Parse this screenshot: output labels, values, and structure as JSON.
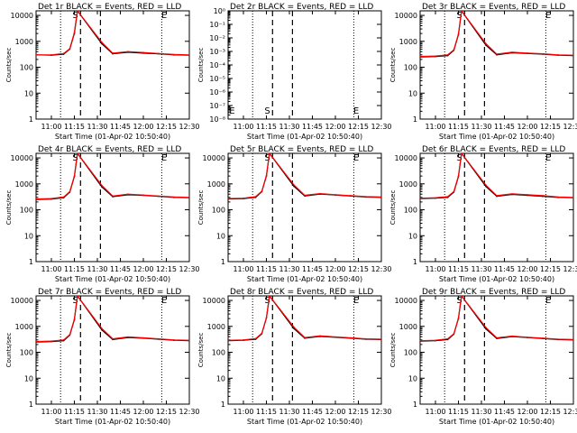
{
  "figure": {
    "xlabel": "Start Time (01-Apr-02 10:50:40)",
    "ylabel": "Counts/sec"
  },
  "chart_data": [
    {
      "type": "line",
      "title": "Det 1r BLACK = Events, RED = LLD",
      "xlabel": "Start Time (01-Apr-02 10:50:40)",
      "ylabel": "Counts/sec",
      "xticks": [
        "11:00",
        "11:15",
        "11:30",
        "11:45",
        "12:00",
        "12:15",
        "12:30"
      ],
      "yticks": [
        "1",
        "10",
        "100",
        "1000",
        "10000"
      ],
      "ylog": true,
      "ylim": [
        1,
        15000
      ],
      "xlim": [
        "10:50",
        "12:30"
      ],
      "vlines_dashed": [
        "11:19",
        "11:32"
      ],
      "vlines_dotted": [
        "11:06",
        "12:12"
      ],
      "markers": [
        {
          "label": "S",
          "x": "11:15"
        },
        {
          "label": "E",
          "x": "12:13"
        }
      ],
      "has_data": true,
      "series": [
        {
          "name": "Events",
          "color": "#000000",
          "x": [
            "10:50",
            "11:00",
            "11:08",
            "11:12",
            "11:15",
            "11:17",
            "11:33",
            "11:40",
            "11:50",
            "12:00",
            "12:10",
            "12:20",
            "12:30"
          ],
          "y": [
            300,
            290,
            320,
            500,
            2000,
            15000,
            800,
            330,
            380,
            350,
            330,
            300,
            290
          ]
        },
        {
          "name": "LLD",
          "color": "#ff0000",
          "x": [
            "10:50",
            "11:00",
            "11:08",
            "11:12",
            "11:15",
            "11:17",
            "11:33",
            "11:40",
            "11:50",
            "12:00",
            "12:10",
            "12:20",
            "12:30"
          ],
          "y": [
            300,
            300,
            340,
            520,
            2200,
            15000,
            900,
            350,
            400,
            370,
            340,
            310,
            300
          ]
        }
      ]
    },
    {
      "type": "line",
      "title": "Det 2r BLACK = Events, RED = LLD",
      "xlabel": "Start Time (01-Apr-02 10:50:40)",
      "ylabel": "Counts/sec",
      "xticks": [
        "11:00",
        "11:15",
        "11:30",
        "11:45",
        "12:00",
        "12:15",
        "12:30"
      ],
      "yticks": [
        "10⁻⁸",
        "10⁻⁷",
        "10⁻⁶",
        "10⁻⁵",
        "10⁻⁴",
        "10⁻³",
        "10⁻²",
        "10⁻¹",
        "10⁰"
      ],
      "ylog": true,
      "ylim": [
        1e-08,
        1
      ],
      "xlim": [
        "10:50",
        "12:30"
      ],
      "vlines_dashed": [
        "11:19",
        "11:32"
      ],
      "vlines_dotted": [
        "11:06",
        "12:12"
      ],
      "markers": [
        {
          "label": "E",
          "x": "10:52"
        },
        {
          "label": "S",
          "x": "11:15"
        },
        {
          "label": "E",
          "x": "12:13"
        }
      ],
      "has_data": false,
      "series": []
    },
    {
      "type": "line",
      "title": "Det 3r BLACK = Events, RED = LLD",
      "xlabel": "Start Time (01-Apr-02 10:50:40)",
      "ylabel": "Counts/sec",
      "xticks": [
        "11:00",
        "11:15",
        "11:30",
        "11:45",
        "12:00",
        "12:15",
        "12:30"
      ],
      "yticks": [
        "1",
        "10",
        "100",
        "1000",
        "10000"
      ],
      "ylog": true,
      "ylim": [
        1,
        15000
      ],
      "xlim": [
        "10:50",
        "12:30"
      ],
      "vlines_dashed": [
        "11:19",
        "11:32"
      ],
      "vlines_dotted": [
        "11:06",
        "12:12"
      ],
      "markers": [
        {
          "label": "S",
          "x": "11:15"
        },
        {
          "label": "E",
          "x": "12:13"
        }
      ],
      "has_data": true,
      "series": [
        {
          "name": "Events",
          "color": "#000000",
          "x": [
            "10:50",
            "11:00",
            "11:08",
            "11:12",
            "11:15",
            "11:17",
            "11:33",
            "11:40",
            "11:50",
            "12:00",
            "12:10",
            "12:20",
            "12:30"
          ],
          "y": [
            250,
            260,
            280,
            450,
            1800,
            15000,
            700,
            300,
            360,
            340,
            320,
            290,
            280
          ]
        },
        {
          "name": "LLD",
          "color": "#ff0000",
          "x": [
            "10:50",
            "11:00",
            "11:08",
            "11:12",
            "11:15",
            "11:17",
            "11:33",
            "11:40",
            "11:50",
            "12:00",
            "12:10",
            "12:20",
            "12:30"
          ],
          "y": [
            260,
            270,
            300,
            470,
            1900,
            15000,
            800,
            320,
            380,
            350,
            330,
            300,
            290
          ]
        }
      ]
    },
    {
      "type": "line",
      "title": "Det 4r BLACK = Events, RED = LLD",
      "xlabel": "Start Time (01-Apr-02 10:50:40)",
      "ylabel": "Counts/sec",
      "xticks": [
        "11:00",
        "11:15",
        "11:30",
        "11:45",
        "12:00",
        "12:15",
        "12:30"
      ],
      "yticks": [
        "1",
        "10",
        "100",
        "1000",
        "10000"
      ],
      "ylog": true,
      "ylim": [
        1,
        15000
      ],
      "xlim": [
        "10:50",
        "12:30"
      ],
      "vlines_dashed": [
        "11:19",
        "11:32"
      ],
      "vlines_dotted": [
        "11:06",
        "12:12"
      ],
      "markers": [
        {
          "label": "S",
          "x": "11:15"
        },
        {
          "label": "E",
          "x": "12:13"
        }
      ],
      "has_data": true,
      "series": [
        {
          "name": "Events",
          "color": "#000000",
          "x": [
            "10:50",
            "11:00",
            "11:08",
            "11:12",
            "11:15",
            "11:17",
            "11:33",
            "11:40",
            "11:50",
            "12:00",
            "12:10",
            "12:20",
            "12:30"
          ],
          "y": [
            250,
            260,
            290,
            480,
            1900,
            15000,
            750,
            320,
            380,
            360,
            330,
            300,
            290
          ]
        },
        {
          "name": "LLD",
          "color": "#ff0000",
          "x": [
            "10:50",
            "11:00",
            "11:08",
            "11:12",
            "11:15",
            "11:17",
            "11:33",
            "11:40",
            "11:50",
            "12:00",
            "12:10",
            "12:20",
            "12:30"
          ],
          "y": [
            260,
            270,
            310,
            500,
            2000,
            15000,
            850,
            340,
            400,
            370,
            340,
            310,
            300
          ]
        }
      ]
    },
    {
      "type": "line",
      "title": "Det 5r BLACK = Events, RED = LLD",
      "xlabel": "Start Time (01-Apr-02 10:50:40)",
      "ylabel": "Counts/sec",
      "xticks": [
        "11:00",
        "11:15",
        "11:30",
        "11:45",
        "12:00",
        "12:15",
        "12:30"
      ],
      "yticks": [
        "1",
        "10",
        "100",
        "1000",
        "10000"
      ],
      "ylog": true,
      "ylim": [
        1,
        15000
      ],
      "xlim": [
        "10:50",
        "12:30"
      ],
      "vlines_dashed": [
        "11:19",
        "11:32"
      ],
      "vlines_dotted": [
        "11:06",
        "12:12"
      ],
      "markers": [
        {
          "label": "S",
          "x": "11:15"
        },
        {
          "label": "E",
          "x": "12:13"
        }
      ],
      "has_data": true,
      "series": [
        {
          "name": "Events",
          "color": "#000000",
          "x": [
            "10:50",
            "11:00",
            "11:08",
            "11:12",
            "11:15",
            "11:17",
            "11:33",
            "11:40",
            "11:50",
            "12:00",
            "12:10",
            "12:20",
            "12:30"
          ],
          "y": [
            260,
            270,
            300,
            500,
            2000,
            15000,
            800,
            340,
            400,
            370,
            340,
            310,
            300
          ]
        },
        {
          "name": "LLD",
          "color": "#ff0000",
          "x": [
            "10:50",
            "11:00",
            "11:08",
            "11:12",
            "11:15",
            "11:17",
            "11:33",
            "11:40",
            "11:50",
            "12:00",
            "12:10",
            "12:20",
            "12:30"
          ],
          "y": [
            270,
            280,
            320,
            520,
            2100,
            15000,
            900,
            360,
            420,
            380,
            350,
            320,
            310
          ]
        }
      ]
    },
    {
      "type": "line",
      "title": "Det 6r BLACK = Events, RED = LLD",
      "xlabel": "Start Time (01-Apr-02 10:50:40)",
      "ylabel": "Counts/sec",
      "xticks": [
        "11:00",
        "11:15",
        "11:30",
        "11:45",
        "12:00",
        "12:15",
        "12:30"
      ],
      "yticks": [
        "1",
        "10",
        "100",
        "1000",
        "10000"
      ],
      "ylog": true,
      "ylim": [
        1,
        15000
      ],
      "xlim": [
        "10:50",
        "12:30"
      ],
      "vlines_dashed": [
        "11:19",
        "11:32"
      ],
      "vlines_dotted": [
        "11:06",
        "12:12"
      ],
      "markers": [
        {
          "label": "S",
          "x": "11:15"
        },
        {
          "label": "E",
          "x": "12:13"
        }
      ],
      "has_data": true,
      "series": [
        {
          "name": "Events",
          "color": "#000000",
          "x": [
            "10:50",
            "11:00",
            "11:08",
            "11:12",
            "11:15",
            "11:17",
            "11:33",
            "11:40",
            "11:50",
            "12:00",
            "12:10",
            "12:20",
            "12:30"
          ],
          "y": [
            270,
            280,
            300,
            480,
            1900,
            15000,
            780,
            330,
            390,
            360,
            330,
            300,
            290
          ]
        },
        {
          "name": "LLD",
          "color": "#ff0000",
          "x": [
            "10:50",
            "11:00",
            "11:08",
            "11:12",
            "11:15",
            "11:17",
            "11:33",
            "11:40",
            "11:50",
            "12:00",
            "12:10",
            "12:20",
            "12:30"
          ],
          "y": [
            280,
            290,
            320,
            500,
            2000,
            15000,
            880,
            350,
            410,
            380,
            350,
            310,
            300
          ]
        }
      ]
    },
    {
      "type": "line",
      "title": "Det 7r BLACK = Events, RED = LLD",
      "xlabel": "Start Time (01-Apr-02 10:50:40)",
      "ylabel": "Counts/sec",
      "xticks": [
        "11:00",
        "11:15",
        "11:30",
        "11:45",
        "12:00",
        "12:15",
        "12:30"
      ],
      "yticks": [
        "1",
        "10",
        "100",
        "1000",
        "10000"
      ],
      "ylog": true,
      "ylim": [
        1,
        15000
      ],
      "xlim": [
        "10:50",
        "12:30"
      ],
      "vlines_dashed": [
        "11:19",
        "11:32"
      ],
      "vlines_dotted": [
        "11:06",
        "12:12"
      ],
      "markers": [
        {
          "label": "S",
          "x": "11:15"
        },
        {
          "label": "E",
          "x": "12:13"
        }
      ],
      "has_data": true,
      "series": [
        {
          "name": "Events",
          "color": "#000000",
          "x": [
            "10:50",
            "11:00",
            "11:08",
            "11:12",
            "11:15",
            "11:17",
            "11:33",
            "11:40",
            "11:50",
            "12:00",
            "12:10",
            "12:20",
            "12:30"
          ],
          "y": [
            250,
            260,
            280,
            460,
            1800,
            15000,
            720,
            310,
            370,
            350,
            320,
            290,
            280
          ]
        },
        {
          "name": "LLD",
          "color": "#ff0000",
          "x": [
            "10:50",
            "11:00",
            "11:08",
            "11:12",
            "11:15",
            "11:17",
            "11:33",
            "11:40",
            "11:50",
            "12:00",
            "12:10",
            "12:20",
            "12:30"
          ],
          "y": [
            260,
            270,
            300,
            480,
            1900,
            15000,
            820,
            330,
            390,
            360,
            330,
            300,
            290
          ]
        }
      ]
    },
    {
      "type": "line",
      "title": "Det 8r BLACK = Events, RED = LLD",
      "xlabel": "Start Time (01-Apr-02 10:50:40)",
      "ylabel": "Counts/sec",
      "xticks": [
        "11:00",
        "11:15",
        "11:30",
        "11:45",
        "12:00",
        "12:15",
        "12:30"
      ],
      "yticks": [
        "1",
        "10",
        "100",
        "1000",
        "10000"
      ],
      "ylog": true,
      "ylim": [
        1,
        15000
      ],
      "xlim": [
        "10:50",
        "12:30"
      ],
      "vlines_dashed": [
        "11:19",
        "11:32"
      ],
      "vlines_dotted": [
        "11:06",
        "12:12"
      ],
      "markers": [
        {
          "label": "S",
          "x": "11:15"
        },
        {
          "label": "E",
          "x": "12:13"
        }
      ],
      "has_data": true,
      "series": [
        {
          "name": "Events",
          "color": "#000000",
          "x": [
            "10:50",
            "11:00",
            "11:08",
            "11:12",
            "11:15",
            "11:17",
            "11:33",
            "11:40",
            "11:50",
            "12:00",
            "12:10",
            "12:20",
            "12:30"
          ],
          "y": [
            280,
            290,
            320,
            520,
            2100,
            15000,
            820,
            350,
            410,
            380,
            350,
            320,
            310
          ]
        },
        {
          "name": "LLD",
          "color": "#ff0000",
          "x": [
            "10:50",
            "11:00",
            "11:08",
            "11:12",
            "11:15",
            "11:17",
            "11:33",
            "11:40",
            "11:50",
            "12:00",
            "12:10",
            "12:20",
            "12:30"
          ],
          "y": [
            290,
            300,
            340,
            540,
            2200,
            15000,
            920,
            370,
            430,
            390,
            360,
            330,
            320
          ]
        }
      ]
    },
    {
      "type": "line",
      "title": "Det 9r BLACK = Events, RED = LLD",
      "xlabel": "Start Time (01-Apr-02 10:50:40)",
      "ylabel": "Counts/sec",
      "xticks": [
        "11:00",
        "11:15",
        "11:30",
        "11:45",
        "12:00",
        "12:15",
        "12:30"
      ],
      "yticks": [
        "1",
        "10",
        "100",
        "1000",
        "10000"
      ],
      "ylog": true,
      "ylim": [
        1,
        15000
      ],
      "xlim": [
        "10:50",
        "12:30"
      ],
      "vlines_dashed": [
        "11:19",
        "11:32"
      ],
      "vlines_dotted": [
        "11:06",
        "12:12"
      ],
      "markers": [
        {
          "label": "S",
          "x": "11:15"
        },
        {
          "label": "E",
          "x": "12:13"
        }
      ],
      "has_data": true,
      "series": [
        {
          "name": "Events",
          "color": "#000000",
          "x": [
            "10:50",
            "11:00",
            "11:08",
            "11:12",
            "11:15",
            "11:17",
            "11:33",
            "11:40",
            "11:50",
            "12:00",
            "12:10",
            "12:20",
            "12:30"
          ],
          "y": [
            270,
            280,
            310,
            500,
            2000,
            15000,
            790,
            340,
            400,
            370,
            340,
            310,
            300
          ]
        },
        {
          "name": "LLD",
          "color": "#ff0000",
          "x": [
            "10:50",
            "11:00",
            "11:08",
            "11:12",
            "11:15",
            "11:17",
            "11:33",
            "11:40",
            "11:50",
            "12:00",
            "12:10",
            "12:20",
            "12:30"
          ],
          "y": [
            280,
            290,
            330,
            520,
            2100,
            15000,
            890,
            360,
            420,
            380,
            350,
            320,
            310
          ]
        }
      ]
    }
  ]
}
